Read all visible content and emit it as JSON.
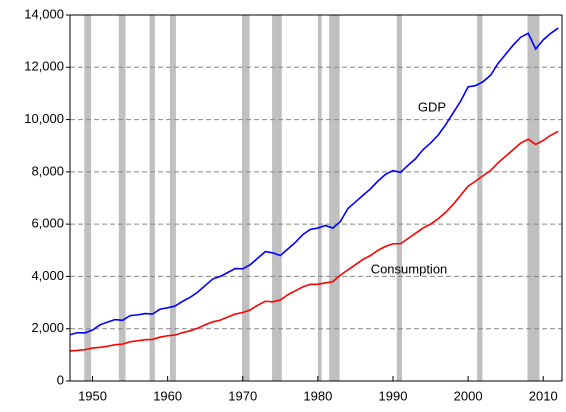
{
  "chart_data": {
    "type": "line",
    "x": [
      1947,
      1948,
      1949,
      1950,
      1951,
      1952,
      1953,
      1954,
      1955,
      1956,
      1957,
      1958,
      1959,
      1960,
      1961,
      1962,
      1963,
      1964,
      1965,
      1966,
      1967,
      1968,
      1969,
      1970,
      1971,
      1972,
      1973,
      1974,
      1975,
      1976,
      1977,
      1978,
      1979,
      1980,
      1981,
      1982,
      1983,
      1984,
      1985,
      1986,
      1987,
      1988,
      1989,
      1990,
      1991,
      1992,
      1993,
      1994,
      1995,
      1996,
      1997,
      1998,
      1999,
      2000,
      2001,
      2002,
      2003,
      2004,
      2005,
      2006,
      2007,
      2008,
      2009,
      2010,
      2011,
      2012
    ],
    "series": [
      {
        "name": "GDP",
        "color": "#0000ff",
        "values": [
          1770,
          1850,
          1840,
          1950,
          2150,
          2250,
          2350,
          2320,
          2500,
          2530,
          2580,
          2560,
          2750,
          2800,
          2870,
          3050,
          3200,
          3400,
          3650,
          3900,
          4000,
          4150,
          4300,
          4290,
          4450,
          4700,
          4950,
          4900,
          4800,
          5050,
          5300,
          5600,
          5800,
          5850,
          5950,
          5850,
          6100,
          6600,
          6850,
          7100,
          7350,
          7650,
          7900,
          8050,
          7980,
          8250,
          8500,
          8850,
          9100,
          9400,
          9800,
          10250,
          10700,
          11250,
          11300,
          11450,
          11700,
          12150,
          12500,
          12850,
          13150,
          13300,
          12700,
          13050,
          13300,
          13500
        ]
      },
      {
        "name": "Consumption",
        "color": "#ff0000",
        "values": [
          1150,
          1170,
          1200,
          1260,
          1290,
          1330,
          1390,
          1410,
          1500,
          1540,
          1580,
          1590,
          1680,
          1730,
          1760,
          1850,
          1920,
          2020,
          2150,
          2260,
          2330,
          2450,
          2560,
          2620,
          2720,
          2900,
          3050,
          3030,
          3100,
          3300,
          3450,
          3600,
          3700,
          3700,
          3750,
          3800,
          4050,
          4250,
          4450,
          4650,
          4800,
          5000,
          5150,
          5250,
          5250,
          5450,
          5650,
          5850,
          6000,
          6200,
          6450,
          6750,
          7100,
          7450,
          7650,
          7850,
          8050,
          8350,
          8600,
          8850,
          9100,
          9250,
          9050,
          9200,
          9400,
          9550
        ]
      }
    ],
    "shaded_periods": [
      [
        1948.9,
        1949.8
      ],
      [
        1953.5,
        1954.4
      ],
      [
        1957.6,
        1958.3
      ],
      [
        1960.3,
        1961.1
      ],
      [
        1969.9,
        1970.9
      ],
      [
        1973.9,
        1975.2
      ],
      [
        1980.0,
        1980.5
      ],
      [
        1981.5,
        1982.9
      ],
      [
        1990.5,
        1991.2
      ],
      [
        2001.2,
        2001.9
      ],
      [
        2007.9,
        2009.5
      ]
    ],
    "shade_color": "#c0c0c0",
    "xlim": [
      1947,
      2012.5
    ],
    "ylim": [
      0,
      14000
    ],
    "xticks": [
      1950,
      1960,
      1970,
      1980,
      1990,
      2000,
      2010
    ],
    "yticks": [
      0,
      {
        "value": 2000,
        "label": "2,000"
      },
      {
        "value": 4000,
        "label": "4,000"
      },
      {
        "value": 6000,
        "label": "6,000"
      },
      {
        "value": 8000,
        "label": "8,000"
      },
      {
        "value": 10000,
        "label": "10,000"
      },
      {
        "value": 12000,
        "label": "12,000"
      },
      {
        "value": 14000,
        "label": "14,000"
      }
    ],
    "grid": true
  }
}
